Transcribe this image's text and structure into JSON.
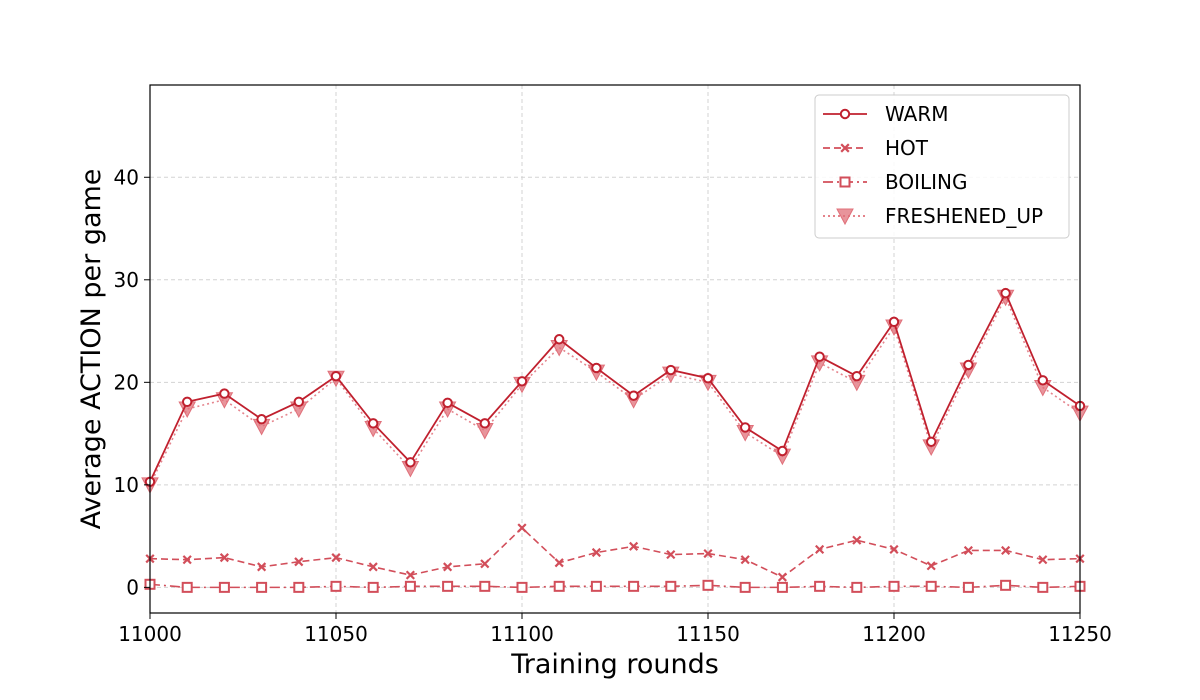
{
  "chart_data": {
    "type": "line",
    "xlabel": "Training rounds",
    "ylabel": "Average ACTION per game",
    "xlim": [
      11000,
      11250
    ],
    "ylim": [
      -2.5,
      49
    ],
    "xticks": [
      11000,
      11050,
      11100,
      11150,
      11200,
      11250
    ],
    "yticks": [
      0,
      10,
      20,
      30,
      40
    ],
    "grid": true,
    "legend_position": "top-right",
    "x": [
      11000,
      11010,
      11020,
      11030,
      11040,
      11050,
      11060,
      11070,
      11080,
      11090,
      11100,
      11110,
      11120,
      11130,
      11140,
      11150,
      11160,
      11170,
      11180,
      11190,
      11200,
      11210,
      11220,
      11230,
      11240,
      11250
    ],
    "series": [
      {
        "name": "WARM",
        "color": "#c0202e",
        "marker": "circle",
        "dash": "solid",
        "values": [
          10.3,
          18.1,
          18.9,
          16.4,
          18.1,
          20.6,
          16.0,
          12.2,
          18.0,
          16.0,
          20.1,
          24.2,
          21.4,
          18.7,
          21.2,
          20.4,
          15.6,
          13.3,
          22.5,
          20.6,
          25.9,
          14.2,
          21.7,
          28.7,
          20.2,
          17.7
        ]
      },
      {
        "name": "HOT",
        "color": "#d24e5a",
        "marker": "x",
        "dash": "dashed",
        "values": [
          2.8,
          2.7,
          2.9,
          2.0,
          2.5,
          2.9,
          2.0,
          1.2,
          2.0,
          2.3,
          5.8,
          2.4,
          3.4,
          4.0,
          3.2,
          3.3,
          2.7,
          1.0,
          3.7,
          4.6,
          3.7,
          2.1,
          3.6,
          3.6,
          2.7,
          2.8
        ]
      },
      {
        "name": "BOILING",
        "color": "#d24e5a",
        "marker": "square",
        "dash": "dashdot",
        "values": [
          0.3,
          0.0,
          0.0,
          0.0,
          0.0,
          0.1,
          0.0,
          0.1,
          0.1,
          0.1,
          0.0,
          0.1,
          0.1,
          0.1,
          0.1,
          0.2,
          0.0,
          0.0,
          0.1,
          0.0,
          0.1,
          0.1,
          0.0,
          0.2,
          0.0,
          0.1
        ]
      },
      {
        "name": "FRESHENED_UP",
        "color": "#e0707a",
        "marker": "triangle-down",
        "dash": "dotted",
        "values": [
          10.0,
          17.4,
          18.3,
          15.7,
          17.4,
          20.4,
          15.5,
          11.6,
          17.4,
          15.3,
          19.8,
          23.4,
          21.0,
          18.3,
          20.8,
          20.0,
          15.1,
          12.8,
          21.9,
          20.0,
          25.4,
          13.7,
          21.2,
          28.3,
          19.5,
          17.0
        ]
      }
    ]
  }
}
